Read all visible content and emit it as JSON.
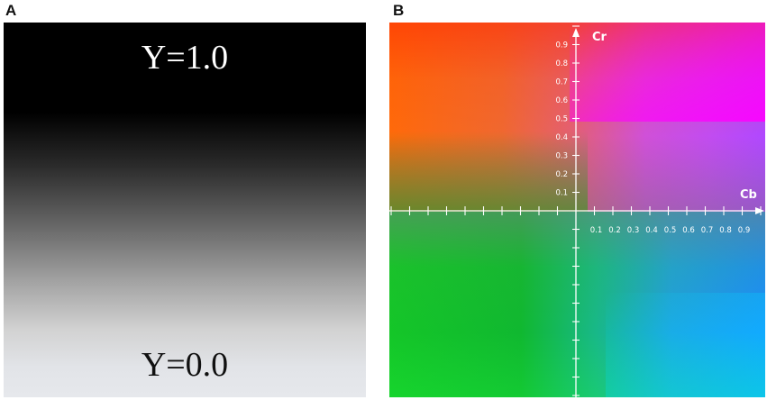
{
  "panels": {
    "a": {
      "label": "A",
      "top_text": "Y=1.0",
      "bottom_text": "Y=0.0"
    },
    "b": {
      "label": "B",
      "cr_label": "Cr",
      "cb_label": "Cb",
      "cr_ticks": [
        "0.9",
        "0.8",
        "0.7",
        "0.6",
        "0.5",
        "0.4",
        "0.3",
        "0.2",
        "0.1"
      ],
      "cb_ticks": [
        "0.1",
        "0.2",
        "0.3",
        "0.4",
        "0.5",
        "0.6",
        "0.7",
        "0.8",
        "0.9"
      ]
    }
  }
}
